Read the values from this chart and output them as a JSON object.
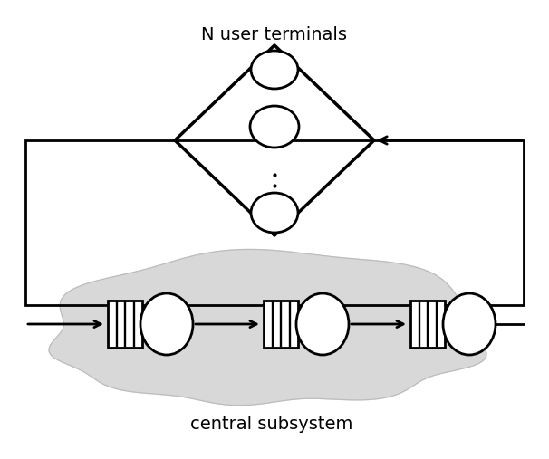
{
  "bg_color": "#ffffff",
  "label_terminals": "N user terminals",
  "label_subsystem": "central subsystem",
  "cloud_color": "#d8d8d8",
  "lw": 2.0
}
